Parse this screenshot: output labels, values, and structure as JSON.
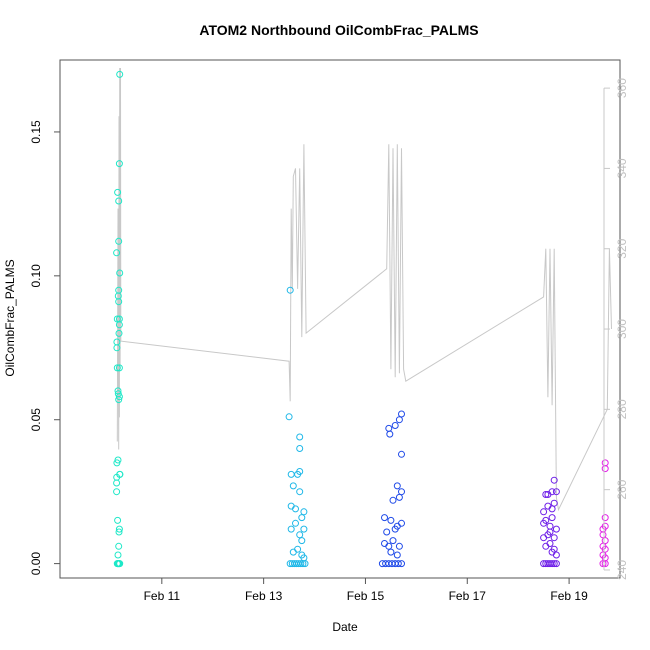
{
  "chart_data": {
    "type": "scatter",
    "title": "ATOM2 Northbound OilCombFrac_PALMS",
    "xlabel": "Date",
    "ylabel": "OilCombFrac_PALMS",
    "xlim": [
      "2014-02-09",
      "2014-02-20"
    ],
    "ylim": [
      -0.005,
      0.175
    ],
    "x_ticks": [
      {
        "date": "2014-02-11",
        "label": "Feb 11"
      },
      {
        "date": "2014-02-13",
        "label": "Feb 13"
      },
      {
        "date": "2014-02-15",
        "label": "Feb 15"
      },
      {
        "date": "2014-02-17",
        "label": "Feb 17"
      },
      {
        "date": "2014-02-19",
        "label": "Feb 19"
      }
    ],
    "y_ticks": [
      "0.00",
      "0.05",
      "0.10",
      "0.15"
    ],
    "y2_ticks": [
      "240",
      "260",
      "280",
      "300",
      "320",
      "340",
      "360"
    ],
    "y2_ylim": [
      238,
      367
    ],
    "grid": false,
    "legend": "none",
    "series": [
      {
        "color": "#1fe8c8",
        "points": [
          [
            "2014-02-10 03:00",
            0.0
          ],
          [
            "2014-02-10 03:10",
            0.0
          ],
          [
            "2014-02-10 03:20",
            0.0
          ],
          [
            "2014-02-10 03:30",
            0.0
          ],
          [
            "2014-02-10 03:40",
            0.0
          ],
          [
            "2014-02-10 03:50",
            0.0
          ],
          [
            "2014-02-10 04:00",
            0.0
          ],
          [
            "2014-02-10 04:10",
            0.0
          ],
          [
            "2014-02-10 03:20",
            0.003
          ],
          [
            "2014-02-10 03:40",
            0.006
          ],
          [
            "2014-02-10 03:50",
            0.011
          ],
          [
            "2014-02-10 04:00",
            0.012
          ],
          [
            "2014-02-10 03:10",
            0.015
          ],
          [
            "2014-02-10 02:40",
            0.025
          ],
          [
            "2014-02-10 02:40",
            0.028
          ],
          [
            "2014-02-10 02:45",
            0.03
          ],
          [
            "2014-02-10 04:10",
            0.031
          ],
          [
            "2014-02-10 04:15",
            0.031
          ],
          [
            "2014-02-10 02:50",
            0.035
          ],
          [
            "2014-02-10 03:20",
            0.036
          ],
          [
            "2014-02-10 03:40",
            0.057
          ],
          [
            "2014-02-10 04:00",
            0.058
          ],
          [
            "2014-02-10 03:30",
            0.059
          ],
          [
            "2014-02-10 03:20",
            0.06
          ],
          [
            "2014-02-10 03:00",
            0.068
          ],
          [
            "2014-02-10 04:00",
            0.068
          ],
          [
            "2014-02-10 02:50",
            0.075
          ],
          [
            "2014-02-10 02:50",
            0.077
          ],
          [
            "2014-02-10 03:50",
            0.08
          ],
          [
            "2014-02-10 04:00",
            0.083
          ],
          [
            "2014-02-10 03:00",
            0.085
          ],
          [
            "2014-02-10 04:00",
            0.085
          ],
          [
            "2014-02-10 03:40",
            0.091
          ],
          [
            "2014-02-10 03:30",
            0.093
          ],
          [
            "2014-02-10 03:40",
            0.095
          ],
          [
            "2014-02-10 04:10",
            0.101
          ],
          [
            "2014-02-10 02:40",
            0.108
          ],
          [
            "2014-02-10 03:40",
            0.112
          ],
          [
            "2014-02-10 03:40",
            0.126
          ],
          [
            "2014-02-10 03:10",
            0.129
          ],
          [
            "2014-02-10 04:00",
            0.139
          ],
          [
            "2014-02-10 04:10",
            0.17
          ]
        ]
      },
      {
        "color": "#1fb8e8",
        "points": [
          [
            "2014-02-13 12:30",
            0.095
          ],
          [
            "2014-02-13 12:00",
            0.051
          ],
          [
            "2014-02-13 17:00",
            0.044
          ],
          [
            "2014-02-13 17:00",
            0.04
          ],
          [
            "2014-02-13 13:00",
            0.031
          ],
          [
            "2014-02-13 17:00",
            0.032
          ],
          [
            "2014-02-13 16:00",
            0.031
          ],
          [
            "2014-02-13 14:00",
            0.027
          ],
          [
            "2014-02-13 17:00",
            0.025
          ],
          [
            "2014-02-13 13:00",
            0.02
          ],
          [
            "2014-02-13 15:00",
            0.019
          ],
          [
            "2014-02-13 18:00",
            0.016
          ],
          [
            "2014-02-13 19:00",
            0.018
          ],
          [
            "2014-02-13 13:00",
            0.012
          ],
          [
            "2014-02-13 15:00",
            0.014
          ],
          [
            "2014-02-13 17:00",
            0.01
          ],
          [
            "2014-02-13 18:00",
            0.008
          ],
          [
            "2014-02-13 19:00",
            0.012
          ],
          [
            "2014-02-13 14:00",
            0.004
          ],
          [
            "2014-02-13 16:00",
            0.005
          ],
          [
            "2014-02-13 18:00",
            0.003
          ],
          [
            "2014-02-13 19:00",
            0.002
          ],
          [
            "2014-02-13 12:30",
            0.0
          ],
          [
            "2014-02-13 13:30",
            0.0
          ],
          [
            "2014-02-13 14:30",
            0.0
          ],
          [
            "2014-02-13 15:30",
            0.0
          ],
          [
            "2014-02-13 16:30",
            0.0
          ],
          [
            "2014-02-13 17:30",
            0.0
          ],
          [
            "2014-02-13 18:30",
            0.0
          ],
          [
            "2014-02-13 19:30",
            0.0
          ]
        ]
      },
      {
        "color": "#1f4ae8",
        "points": [
          [
            "2014-02-15 17:00",
            0.052
          ],
          [
            "2014-02-15 16:00",
            0.05
          ],
          [
            "2014-02-15 11:00",
            0.047
          ],
          [
            "2014-02-15 14:00",
            0.048
          ],
          [
            "2014-02-15 11:30",
            0.045
          ],
          [
            "2014-02-15 17:00",
            0.038
          ],
          [
            "2014-02-15 15:00",
            0.027
          ],
          [
            "2014-02-15 17:00",
            0.025
          ],
          [
            "2014-02-15 13:00",
            0.022
          ],
          [
            "2014-02-15 16:00",
            0.023
          ],
          [
            "2014-02-15 09:00",
            0.016
          ],
          [
            "2014-02-15 12:00",
            0.015
          ],
          [
            "2014-02-15 15:00",
            0.013
          ],
          [
            "2014-02-15 17:00",
            0.014
          ],
          [
            "2014-02-15 10:00",
            0.011
          ],
          [
            "2014-02-15 14:00",
            0.012
          ],
          [
            "2014-02-15 09:00",
            0.007
          ],
          [
            "2014-02-15 11:00",
            0.006
          ],
          [
            "2014-02-15 13:00",
            0.008
          ],
          [
            "2014-02-15 16:00",
            0.006
          ],
          [
            "2014-02-15 12:00",
            0.004
          ],
          [
            "2014-02-15 15:00",
            0.003
          ],
          [
            "2014-02-15 08:00",
            0.0
          ],
          [
            "2014-02-15 09:30",
            0.0
          ],
          [
            "2014-02-15 11:00",
            0.0
          ],
          [
            "2014-02-15 12:30",
            0.0
          ],
          [
            "2014-02-15 14:00",
            0.0
          ],
          [
            "2014-02-15 15:30",
            0.0
          ],
          [
            "2014-02-15 17:00",
            0.0
          ]
        ]
      },
      {
        "color": "#6e1fe8",
        "points": [
          [
            "2014-02-18 13:00",
            0.024
          ],
          [
            "2014-02-18 14:00",
            0.024
          ],
          [
            "2014-02-18 16:00",
            0.025
          ],
          [
            "2014-02-18 17:00",
            0.029
          ],
          [
            "2014-02-18 18:00",
            0.025
          ],
          [
            "2014-02-18 12:00",
            0.018
          ],
          [
            "2014-02-18 14:00",
            0.02
          ],
          [
            "2014-02-18 16:00",
            0.019
          ],
          [
            "2014-02-18 17:00",
            0.021
          ],
          [
            "2014-02-18 12:00",
            0.014
          ],
          [
            "2014-02-18 13:00",
            0.015
          ],
          [
            "2014-02-18 15:00",
            0.013
          ],
          [
            "2014-02-18 16:00",
            0.016
          ],
          [
            "2014-02-18 18:00",
            0.012
          ],
          [
            "2014-02-18 12:00",
            0.009
          ],
          [
            "2014-02-18 14:00",
            0.01
          ],
          [
            "2014-02-18 15:00",
            0.011
          ],
          [
            "2014-02-18 17:00",
            0.009
          ],
          [
            "2014-02-18 13:00",
            0.006
          ],
          [
            "2014-02-18 15:00",
            0.007
          ],
          [
            "2014-02-18 16:00",
            0.004
          ],
          [
            "2014-02-18 17:00",
            0.005
          ],
          [
            "2014-02-18 18:00",
            0.003
          ],
          [
            "2014-02-18 12:00",
            0.0
          ],
          [
            "2014-02-18 13:00",
            0.0
          ],
          [
            "2014-02-18 14:00",
            0.0
          ],
          [
            "2014-02-18 15:00",
            0.0
          ],
          [
            "2014-02-18 16:00",
            0.0
          ],
          [
            "2014-02-18 17:00",
            0.0
          ],
          [
            "2014-02-18 18:00",
            0.0
          ]
        ]
      },
      {
        "color": "#e41fe8",
        "points": [
          [
            "2014-02-19 17:00",
            0.035
          ],
          [
            "2014-02-19 17:00",
            0.033
          ],
          [
            "2014-02-19 17:00",
            0.016
          ],
          [
            "2014-02-19 16:00",
            0.012
          ],
          [
            "2014-02-19 17:00",
            0.013
          ],
          [
            "2014-02-19 16:00",
            0.01
          ],
          [
            "2014-02-19 17:00",
            0.008
          ],
          [
            "2014-02-19 16:00",
            0.006
          ],
          [
            "2014-02-19 17:00",
            0.005
          ],
          [
            "2014-02-19 16:00",
            0.003
          ],
          [
            "2014-02-19 17:00",
            0.002
          ],
          [
            "2014-02-19 16:00",
            0.0
          ],
          [
            "2014-02-19 17:00",
            0.0
          ]
        ]
      }
    ],
    "line_series": {
      "color": "#c8c8c8",
      "axis": "right",
      "points": [
        [
          "2014-02-10 03:00",
          272
        ],
        [
          "2014-02-10 03:20",
          330
        ],
        [
          "2014-02-10 03:40",
          270
        ],
        [
          "2014-02-10 03:50",
          353
        ],
        [
          "2014-02-10 04:00",
          278
        ],
        [
          "2014-02-10 04:10",
          365
        ],
        [
          "2014-02-10 04:20",
          290
        ],
        [
          "2014-02-10 04:30",
          365
        ],
        [
          "2014-02-10 04:40",
          297
        ],
        [
          "2014-02-13 12:00",
          292
        ],
        [
          "2014-02-13 12:30",
          282
        ],
        [
          "2014-02-13 13:00",
          330
        ],
        [
          "2014-02-13 13:30",
          310
        ],
        [
          "2014-02-13 14:00",
          338
        ],
        [
          "2014-02-13 15:00",
          340
        ],
        [
          "2014-02-13 16:00",
          310
        ],
        [
          "2014-02-13 17:00",
          340
        ],
        [
          "2014-02-13 18:00",
          298
        ],
        [
          "2014-02-13 19:00",
          346
        ],
        [
          "2014-02-13 20:00",
          299
        ],
        [
          "2014-02-15 10:00",
          315
        ],
        [
          "2014-02-15 11:00",
          346
        ],
        [
          "2014-02-15 12:00",
          290
        ],
        [
          "2014-02-15 13:00",
          345
        ],
        [
          "2014-02-15 14:00",
          288
        ],
        [
          "2014-02-15 15:00",
          346
        ],
        [
          "2014-02-15 16:00",
          289
        ],
        [
          "2014-02-15 17:00",
          345
        ],
        [
          "2014-02-15 18:00",
          290
        ],
        [
          "2014-02-15 19:00",
          287
        ],
        [
          "2014-02-18 12:00",
          308
        ],
        [
          "2014-02-18 13:00",
          320
        ],
        [
          "2014-02-18 14:00",
          283
        ],
        [
          "2014-02-18 15:00",
          320
        ],
        [
          "2014-02-18 16:00",
          281
        ],
        [
          "2014-02-18 17:00",
          320
        ],
        [
          "2014-02-18 18:00",
          258
        ],
        [
          "2014-02-18 19:00",
          255
        ],
        [
          "2014-02-19 18:00",
          280
        ],
        [
          "2014-02-19 19:00",
          320
        ],
        [
          "2014-02-19 20:00",
          300
        ]
      ]
    }
  }
}
